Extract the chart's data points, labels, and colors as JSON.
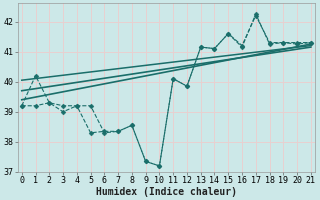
{
  "background_color": "#cce8e8",
  "grid_color": "#e8d0d0",
  "line_color": "#1a6e6a",
  "xlabel": "Humidex (Indice chaleur)",
  "xlim": [
    0,
    21
  ],
  "ylim": [
    37,
    42.6
  ],
  "yticks": [
    37,
    38,
    39,
    40,
    41,
    42
  ],
  "xticks": [
    0,
    1,
    2,
    3,
    4,
    5,
    6,
    7,
    8,
    9,
    10,
    11,
    12,
    13,
    14,
    15,
    16,
    17,
    18,
    19,
    20,
    21
  ],
  "series1_x": [
    0,
    1,
    2,
    3,
    4,
    5,
    6,
    7,
    8,
    9,
    10,
    11,
    12,
    13,
    14,
    15,
    16,
    17,
    18,
    19,
    20,
    21
  ],
  "series1_y": [
    39.2,
    40.2,
    39.3,
    39.2,
    39.2,
    38.3,
    38.35,
    38.35,
    38.55,
    37.35,
    37.2,
    40.1,
    39.85,
    41.15,
    41.1,
    41.6,
    41.2,
    42.2,
    41.3,
    41.3,
    41.3,
    41.3
  ],
  "series2_x": [
    0,
    1,
    2,
    3,
    4,
    5,
    6,
    7,
    8,
    9,
    10,
    11,
    12,
    13,
    14,
    15,
    16,
    17,
    18,
    19,
    20,
    21
  ],
  "series2_y": [
    39.2,
    39.2,
    39.3,
    39.0,
    39.2,
    39.2,
    38.3,
    38.35,
    38.55,
    37.35,
    37.2,
    40.1,
    39.85,
    41.15,
    41.1,
    41.6,
    41.15,
    42.25,
    41.25,
    41.3,
    41.25,
    41.3
  ],
  "trend1_x": [
    0,
    21
  ],
  "trend1_y": [
    39.4,
    41.25
  ],
  "trend2_x": [
    0,
    21
  ],
  "trend2_y": [
    39.7,
    41.15
  ],
  "trend3_x": [
    0,
    21
  ],
  "trend3_y": [
    40.05,
    41.2
  ],
  "font_size": 7,
  "tick_fontsize": 6,
  "marker_size": 2.5
}
